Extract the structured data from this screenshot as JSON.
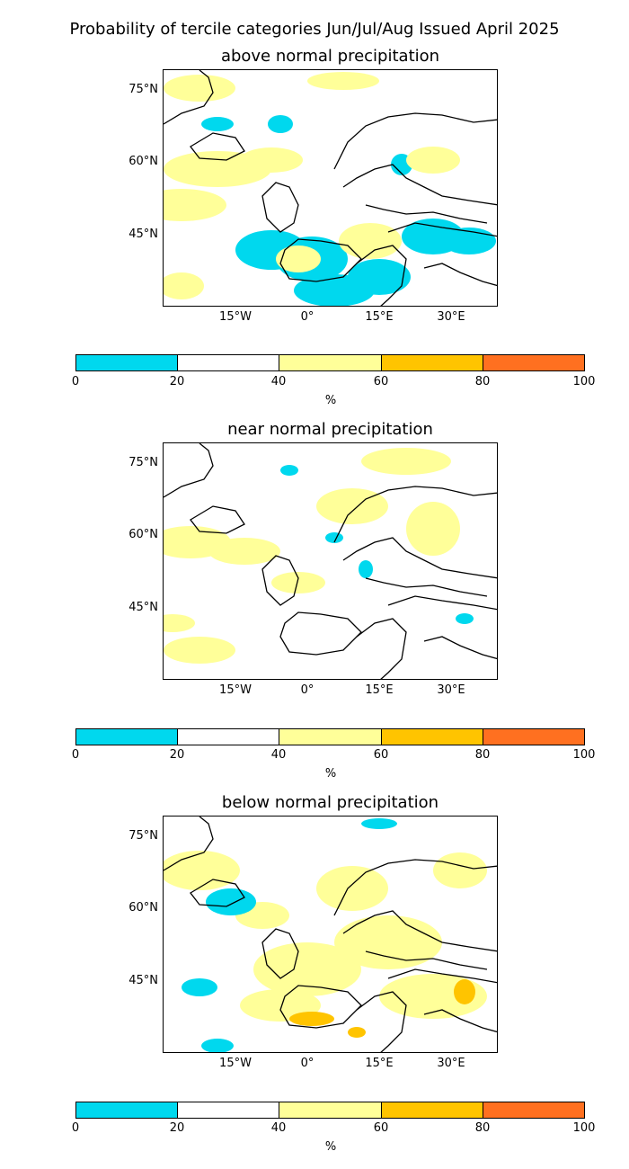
{
  "suptitle": "Probability of tercile categories Jun/Jul/Aug Issued April 2025",
  "panels": [
    {
      "title": "above normal precipitation",
      "lat_ticks": [
        "75°N",
        "60°N",
        "45°N"
      ],
      "lon_ticks": [
        "15°W",
        "0°",
        "15°E",
        "30°E"
      ]
    },
    {
      "title": "near normal precipitation",
      "lat_ticks": [
        "75°N",
        "60°N",
        "45°N"
      ],
      "lon_ticks": [
        "15°W",
        "0°",
        "15°E",
        "30°E"
      ]
    },
    {
      "title": "below normal precipitation",
      "lat_ticks": [
        "75°N",
        "60°N",
        "45°N"
      ],
      "lon_ticks": [
        "15°W",
        "0°",
        "15°E",
        "30°E"
      ]
    }
  ],
  "colorbar": {
    "ticks": [
      "0",
      "20",
      "40",
      "60",
      "80",
      "100"
    ],
    "unit": "%",
    "colors": [
      "#00d8ee",
      "#ffffff",
      "#ffff99",
      "#ffc400",
      "#ff7020"
    ]
  }
}
